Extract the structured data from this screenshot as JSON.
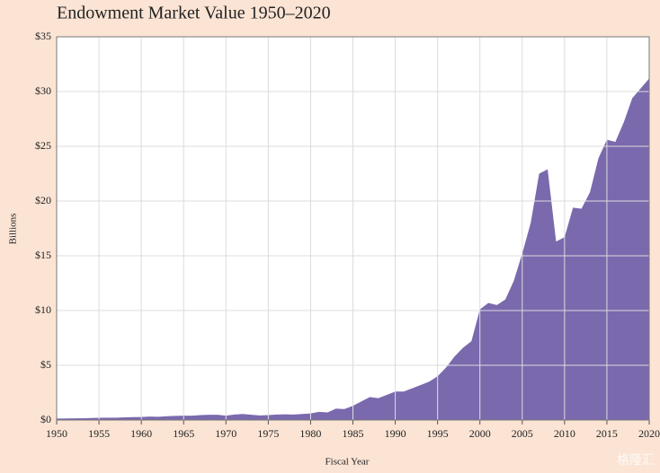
{
  "chart_data": {
    "type": "area",
    "title": "Endowment Market Value 1950–2020",
    "x_label": "Fiscal Year",
    "y_label": "Billions",
    "watermark": "格隆汇",
    "color": "#7b69ae",
    "grid": true,
    "x": [
      1950,
      1951,
      1952,
      1953,
      1954,
      1955,
      1956,
      1957,
      1958,
      1959,
      1960,
      1961,
      1962,
      1963,
      1964,
      1965,
      1966,
      1967,
      1968,
      1969,
      1970,
      1971,
      1972,
      1973,
      1974,
      1975,
      1976,
      1977,
      1978,
      1979,
      1980,
      1981,
      1982,
      1983,
      1984,
      1985,
      1986,
      1987,
      1988,
      1989,
      1990,
      1991,
      1992,
      1993,
      1994,
      1995,
      1996,
      1997,
      1998,
      1999,
      2000,
      2001,
      2002,
      2003,
      2004,
      2005,
      2006,
      2007,
      2008,
      2009,
      2010,
      2011,
      2012,
      2013,
      2014,
      2015,
      2016,
      2017,
      2018,
      2019,
      2020
    ],
    "values": [
      0.13,
      0.14,
      0.15,
      0.16,
      0.18,
      0.2,
      0.22,
      0.22,
      0.25,
      0.27,
      0.28,
      0.32,
      0.3,
      0.35,
      0.38,
      0.4,
      0.4,
      0.45,
      0.48,
      0.48,
      0.4,
      0.5,
      0.55,
      0.48,
      0.42,
      0.45,
      0.5,
      0.52,
      0.5,
      0.55,
      0.6,
      0.75,
      0.7,
      1.05,
      1.0,
      1.3,
      1.7,
      2.1,
      2.0,
      2.3,
      2.6,
      2.6,
      2.9,
      3.2,
      3.5,
      4.0,
      4.8,
      5.8,
      6.6,
      7.2,
      10.1,
      10.7,
      10.5,
      11.0,
      12.7,
      15.2,
      18.0,
      22.5,
      22.9,
      16.3,
      16.7,
      19.4,
      19.3,
      20.8,
      23.9,
      25.6,
      25.4,
      27.2,
      29.4,
      30.3,
      31.2
    ],
    "xlim": [
      1950,
      2020
    ],
    "xticks": [
      1950,
      1955,
      1960,
      1965,
      1970,
      1975,
      1980,
      1985,
      1990,
      1995,
      2000,
      2005,
      2010,
      2015,
      2020
    ],
    "ylim": [
      0,
      35
    ],
    "yticks": [
      {
        "value": 0,
        "label": "$0"
      },
      {
        "value": 5,
        "label": "$5"
      },
      {
        "value": 10,
        "label": "$10"
      },
      {
        "value": 15,
        "label": "$15"
      },
      {
        "value": 20,
        "label": "$20"
      },
      {
        "value": 25,
        "label": "$25"
      },
      {
        "value": 30,
        "label": "$30"
      },
      {
        "value": 35,
        "label": "$35"
      }
    ]
  }
}
